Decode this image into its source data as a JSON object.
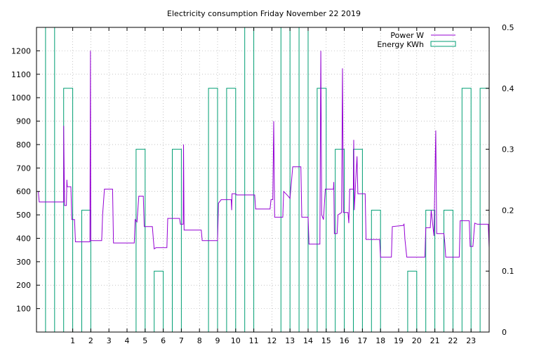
{
  "chart_data": {
    "type": "line",
    "title": "Electricity consumption Friday November 22 2019",
    "xlabel": "",
    "ylabel": "",
    "y2label": "",
    "xlim": [
      -1,
      24
    ],
    "ylim": [
      0,
      1300
    ],
    "y2lim": [
      0,
      0.5
    ],
    "x_ticks": [
      1,
      2,
      3,
      4,
      5,
      6,
      7,
      8,
      9,
      10,
      11,
      12,
      13,
      14,
      15,
      16,
      17,
      18,
      19,
      20,
      21,
      22,
      23
    ],
    "y_ticks": [
      100,
      200,
      300,
      400,
      500,
      600,
      700,
      800,
      900,
      1000,
      1100,
      1200
    ],
    "y2_ticks": [
      0,
      0.1,
      0.2,
      0.3,
      0.4,
      0.5
    ],
    "grid": true,
    "legend_position": "top-right",
    "colors": {
      "power": "#9400d3",
      "energy": "#009e73",
      "grid": "#a0a0a0",
      "axis": "#000000"
    },
    "series": [
      {
        "name": "Power W",
        "style": "line",
        "axis": "y",
        "points": [
          [
            -0.9,
            600
          ],
          [
            -0.85,
            555
          ],
          [
            0.5,
            555
          ],
          [
            0.5,
            880
          ],
          [
            0.55,
            540
          ],
          [
            0.65,
            540
          ],
          [
            0.68,
            650
          ],
          [
            0.7,
            620
          ],
          [
            0.9,
            620
          ],
          [
            0.95,
            480
          ],
          [
            1.1,
            480
          ],
          [
            1.15,
            385
          ],
          [
            1.95,
            385
          ],
          [
            1.98,
            1200
          ],
          [
            2.0,
            390
          ],
          [
            2.6,
            390
          ],
          [
            2.65,
            500
          ],
          [
            2.75,
            610
          ],
          [
            3.2,
            610
          ],
          [
            3.25,
            380
          ],
          [
            4.4,
            380
          ],
          [
            4.45,
            480
          ],
          [
            4.55,
            470
          ],
          [
            4.65,
            580
          ],
          [
            4.9,
            580
          ],
          [
            4.95,
            450
          ],
          [
            5.4,
            450
          ],
          [
            5.45,
            400
          ],
          [
            5.5,
            355
          ],
          [
            5.6,
            360
          ],
          [
            6.2,
            360
          ],
          [
            6.25,
            485
          ],
          [
            6.9,
            485
          ],
          [
            6.95,
            460
          ],
          [
            7.1,
            460
          ],
          [
            7.12,
            800
          ],
          [
            7.15,
            435
          ],
          [
            8.1,
            435
          ],
          [
            8.15,
            390
          ],
          [
            9.0,
            390
          ],
          [
            9.05,
            550
          ],
          [
            9.2,
            565
          ],
          [
            9.75,
            565
          ],
          [
            9.78,
            520
          ],
          [
            9.8,
            590
          ],
          [
            10.0,
            590
          ],
          [
            10.05,
            585
          ],
          [
            11.05,
            585
          ],
          [
            11.1,
            525
          ],
          [
            11.9,
            525
          ],
          [
            11.95,
            565
          ],
          [
            12.05,
            565
          ],
          [
            12.1,
            900
          ],
          [
            12.15,
            490
          ],
          [
            12.6,
            490
          ],
          [
            12.65,
            600
          ],
          [
            12.9,
            580
          ],
          [
            13.0,
            570
          ],
          [
            13.15,
            705
          ],
          [
            13.6,
            705
          ],
          [
            13.65,
            490
          ],
          [
            14.0,
            490
          ],
          [
            14.05,
            375
          ],
          [
            14.65,
            375
          ],
          [
            14.7,
            1200
          ],
          [
            14.75,
            500
          ],
          [
            14.85,
            480
          ],
          [
            14.95,
            610
          ],
          [
            15.4,
            610
          ],
          [
            15.42,
            640
          ],
          [
            15.45,
            420
          ],
          [
            15.6,
            420
          ],
          [
            15.65,
            500
          ],
          [
            15.85,
            510
          ],
          [
            15.9,
            1125
          ],
          [
            15.95,
            510
          ],
          [
            16.2,
            510
          ],
          [
            16.25,
            465
          ],
          [
            16.3,
            610
          ],
          [
            16.5,
            610
          ],
          [
            16.52,
            820
          ],
          [
            16.55,
            520
          ],
          [
            16.65,
            680
          ],
          [
            16.7,
            750
          ],
          [
            16.75,
            590
          ],
          [
            17.15,
            590
          ],
          [
            17.2,
            395
          ],
          [
            17.95,
            395
          ],
          [
            18.0,
            320
          ],
          [
            18.6,
            320
          ],
          [
            18.65,
            450
          ],
          [
            19.25,
            455
          ],
          [
            19.3,
            460
          ],
          [
            19.35,
            395
          ],
          [
            19.45,
            320
          ],
          [
            20.45,
            320
          ],
          [
            20.5,
            445
          ],
          [
            20.75,
            445
          ],
          [
            20.8,
            520
          ],
          [
            20.95,
            410
          ],
          [
            21.05,
            860
          ],
          [
            21.1,
            420
          ],
          [
            21.5,
            420
          ],
          [
            21.55,
            380
          ],
          [
            21.6,
            320
          ],
          [
            22.35,
            320
          ],
          [
            22.4,
            475
          ],
          [
            22.9,
            475
          ],
          [
            22.95,
            365
          ],
          [
            23.1,
            365
          ],
          [
            23.2,
            465
          ],
          [
            23.35,
            460
          ],
          [
            23.95,
            460
          ],
          [
            24.0,
            360
          ]
        ]
      },
      {
        "name": "Energy KWh",
        "style": "bars",
        "axis": "y2",
        "bar_width": 0.5,
        "x": [
          -1,
          0,
          1,
          2,
          3,
          4,
          5,
          6,
          7,
          8,
          9,
          10,
          11,
          12,
          13,
          14,
          15,
          16,
          17,
          18,
          19,
          20,
          21,
          22,
          23
        ],
        "values": [
          0.5,
          0.4,
          0.2,
          0.0,
          0.0,
          0.3,
          0.1,
          0.3,
          0.0,
          0.4,
          0.4,
          0.5,
          0.0,
          0.5,
          0.5,
          0.4,
          0.3,
          0.3,
          0.2,
          0.0,
          0.1,
          0.2,
          0.2,
          0.4,
          0.4
        ]
      }
    ]
  }
}
